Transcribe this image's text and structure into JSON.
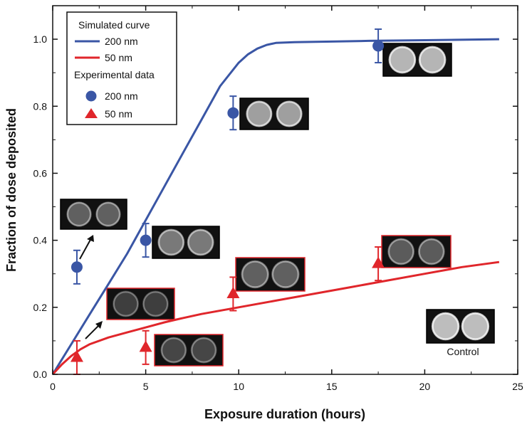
{
  "chart_data": {
    "type": "line",
    "xlabel": "Exposure duration (hours)",
    "ylabel": "Fraction of dose deposited",
    "xlim": [
      0,
      25
    ],
    "ylim": [
      0,
      1.1
    ],
    "xticks": [
      0,
      5,
      10,
      15,
      20,
      25
    ],
    "yticks": [
      0.0,
      0.2,
      0.4,
      0.6,
      0.8,
      1.0
    ],
    "xtick_labels": [
      "0",
      "5",
      "10",
      "15",
      "20",
      "25"
    ],
    "ytick_labels": [
      "0.0",
      "0.2",
      "0.4",
      "0.6",
      "0.8",
      "1.0"
    ],
    "legend": {
      "placement": "top-left",
      "simulated_header": "Simulated curve",
      "experimental_header": "Experimental data",
      "entries": [
        {
          "group": "simulated",
          "label": "200 nm",
          "marker": "line",
          "color": "#3a56a5"
        },
        {
          "group": "simulated",
          "label": "50 nm",
          "marker": "line",
          "color": "#e0262b"
        },
        {
          "group": "experimental",
          "label": "200 nm",
          "marker": "circle",
          "color": "#3a56a5"
        },
        {
          "group": "experimental",
          "label": "50 nm",
          "marker": "triangle",
          "color": "#e0262b"
        }
      ]
    },
    "series": [
      {
        "name": "200 nm",
        "kind": "simulated",
        "color": "#3a56a5",
        "x": [
          0,
          1,
          2,
          3,
          4,
          5,
          6,
          7,
          8,
          9,
          10,
          10.5,
          11,
          11.5,
          12,
          12.5,
          13,
          15,
          17,
          20,
          24
        ],
        "y": [
          0,
          0.09,
          0.18,
          0.27,
          0.36,
          0.46,
          0.56,
          0.66,
          0.76,
          0.86,
          0.93,
          0.955,
          0.972,
          0.983,
          0.989,
          0.99,
          0.991,
          0.993,
          0.995,
          0.997,
          1.0
        ]
      },
      {
        "name": "50 nm",
        "kind": "simulated",
        "color": "#e0262b",
        "x": [
          0,
          0.5,
          1,
          1.5,
          2,
          3,
          4,
          5,
          6,
          7,
          8,
          10,
          12,
          14,
          16,
          18,
          20,
          22,
          24
        ],
        "y": [
          0,
          0.03,
          0.055,
          0.075,
          0.09,
          0.11,
          0.125,
          0.14,
          0.155,
          0.168,
          0.18,
          0.2,
          0.22,
          0.24,
          0.26,
          0.28,
          0.3,
          0.32,
          0.335
        ]
      },
      {
        "name": "200 nm",
        "kind": "experimental",
        "marker": "circle",
        "color": "#3a56a5",
        "x": [
          1.3,
          5.0,
          9.7,
          17.5
        ],
        "y": [
          0.32,
          0.4,
          0.78,
          0.98
        ],
        "yerr": [
          0.05,
          0.05,
          0.05,
          0.05
        ]
      },
      {
        "name": "50 nm",
        "kind": "experimental",
        "marker": "triangle",
        "color": "#e0262b",
        "x": [
          1.3,
          5.0,
          9.7,
          17.5
        ],
        "y": [
          0.05,
          0.08,
          0.24,
          0.33
        ],
        "yerr": [
          0.05,
          0.05,
          0.05,
          0.05
        ]
      }
    ],
    "insets": [
      {
        "id": "inset-200nm-1h",
        "frame": "#000000",
        "brightness": 0.35
      },
      {
        "id": "inset-200nm-5h",
        "frame": "#000000",
        "brightness": 0.5
      },
      {
        "id": "inset-200nm-10h",
        "frame": "#000000",
        "brightness": 0.72
      },
      {
        "id": "inset-200nm-17h",
        "frame": "#000000",
        "brightness": 0.85
      },
      {
        "id": "inset-50nm-1h",
        "frame": "#e0262b",
        "brightness": 0.15
      },
      {
        "id": "inset-50nm-5h",
        "frame": "#e0262b",
        "brightness": 0.2
      },
      {
        "id": "inset-50nm-10h",
        "frame": "#e0262b",
        "brightness": 0.35
      },
      {
        "id": "inset-50nm-17h",
        "frame": "#e0262b",
        "brightness": 0.32
      },
      {
        "id": "inset-control",
        "frame": "#000000",
        "brightness": 0.9
      }
    ],
    "control_label": "Control",
    "grid": false
  }
}
